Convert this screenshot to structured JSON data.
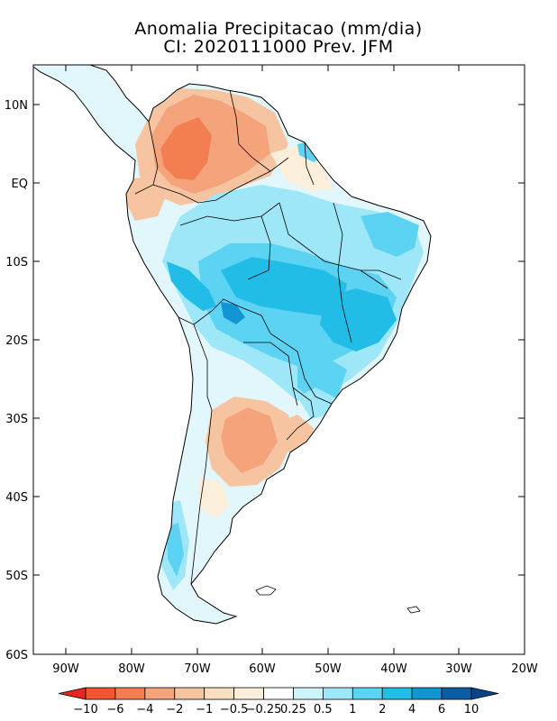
{
  "title": {
    "line1": "Anomalia Precipitacao (mm/dia)",
    "line2": "CI: 2020111000 Prev. JFM"
  },
  "axes": {
    "lat_labels": [
      "10N",
      "EQ",
      "10S",
      "20S",
      "30S",
      "40S",
      "50S",
      "60S"
    ],
    "lon_labels": [
      "90W",
      "80W",
      "70W",
      "60W",
      "50W",
      "40W",
      "30W",
      "20W"
    ]
  },
  "colorbar": {
    "labels": [
      "-10",
      "-6",
      "-4",
      "-2",
      "-1",
      "-0.5",
      "-0.25",
      "0.25",
      "0.5",
      "1",
      "2",
      "4",
      "6",
      "10"
    ],
    "colors": [
      "#e8261e",
      "#f2562e",
      "#f37e51",
      "#f5a37b",
      "#f7c4a1",
      "#f9dfc1",
      "#fbefdc",
      "#ffffff",
      "#cdf3fb",
      "#9ee7f8",
      "#5cd3f2",
      "#22bde6",
      "#1394d3",
      "#0a5ea5",
      "#06458a"
    ],
    "left_color": "#e8261e",
    "right_color": "#06458a"
  }
}
